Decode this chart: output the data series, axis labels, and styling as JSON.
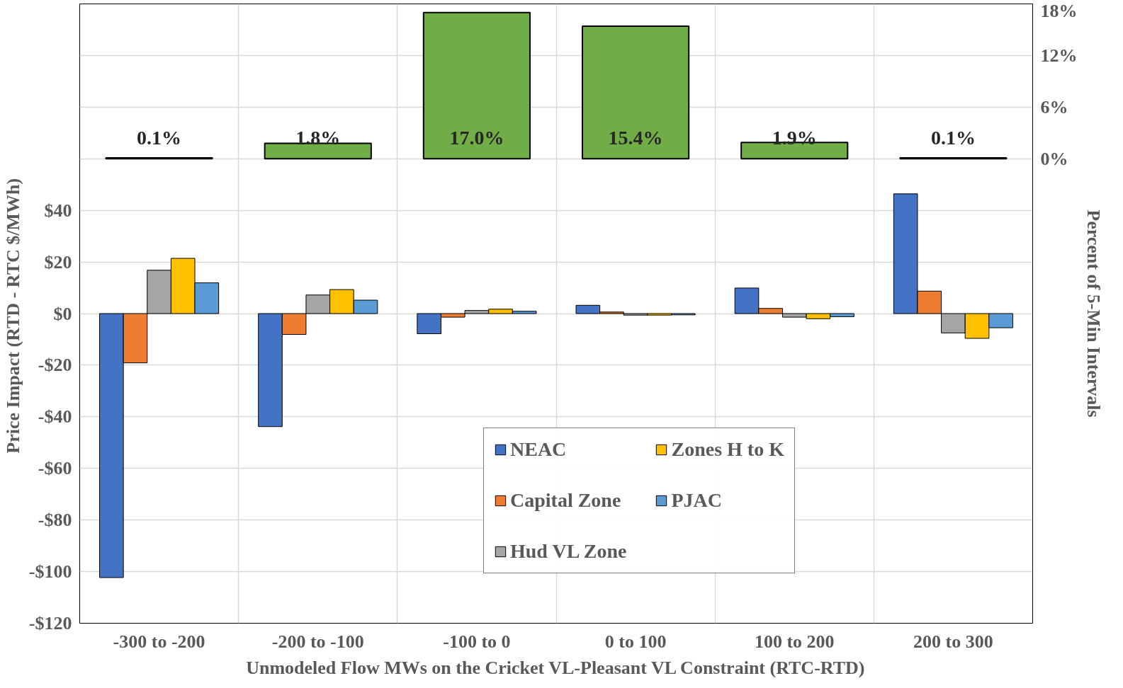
{
  "chart_data": {
    "type": "bar",
    "xlabel": "Unmodeled Flow MWs on the Cricket VL-Pleasant VL Constraint (RTC-RTD)",
    "ylabel": "Price Impact  (RTD - RTC $/MWh)",
    "y2label": "Percent of 5-Min Intervals",
    "categories": [
      "-300 to -200",
      "-200 to -100",
      "-100 to 0",
      "0 to 100",
      "100 to 200",
      "200 to 300"
    ],
    "series": [
      {
        "name": "NEAC",
        "color": "#4472c4",
        "values": [
          -102.3,
          -43.8,
          -7.8,
          3.2,
          9.9,
          46.4
        ]
      },
      {
        "name": "Capital Zone",
        "color": "#ed7d31",
        "values": [
          -19.1,
          -8.1,
          -1.4,
          0.6,
          2.0,
          8.7
        ]
      },
      {
        "name": "Hud VL Zone",
        "color": "#a5a5a5",
        "values": [
          16.8,
          7.2,
          1.2,
          -0.6,
          -1.4,
          -7.5
        ]
      },
      {
        "name": "Zones H to K",
        "color": "#ffc000",
        "values": [
          21.4,
          9.3,
          1.7,
          -0.6,
          -2.0,
          -9.6
        ]
      },
      {
        "name": "PJAC",
        "color": "#5b9bd5",
        "values": [
          11.9,
          5.2,
          0.9,
          -0.5,
          -1.2,
          -5.5
        ]
      },
      {
        "color": "#70ad47",
        "axis": "y2",
        "values": [
          0.1,
          1.8,
          17.0,
          15.4,
          1.9,
          0.1
        ],
        "value_labels": [
          "0.1%",
          "1.8%",
          "17.0%",
          "15.4%",
          "1.9%",
          "0.1%"
        ]
      }
    ],
    "ylim": [
      -120,
      120
    ],
    "yticks": [
      {
        "value": -120,
        "label": "-$120"
      },
      {
        "value": -100,
        "label": "-$100"
      },
      {
        "value": -80,
        "label": "-$80"
      },
      {
        "value": -60,
        "label": "-$60"
      },
      {
        "value": -40,
        "label": "-$40"
      },
      {
        "value": -20,
        "label": "-$20"
      },
      {
        "value": 0,
        "label": "$0"
      },
      {
        "value": 20,
        "label": "$20"
      },
      {
        "value": 40,
        "label": "$40"
      }
    ],
    "y2lim": [
      -54,
      18
    ],
    "y2ticks": [
      {
        "value": 0,
        "label": "0%"
      },
      {
        "value": 6,
        "label": "6%"
      },
      {
        "value": 12,
        "label": "12%"
      },
      {
        "value": 18,
        "label": "18%"
      }
    ],
    "grid": true,
    "legend": "bottom"
  }
}
